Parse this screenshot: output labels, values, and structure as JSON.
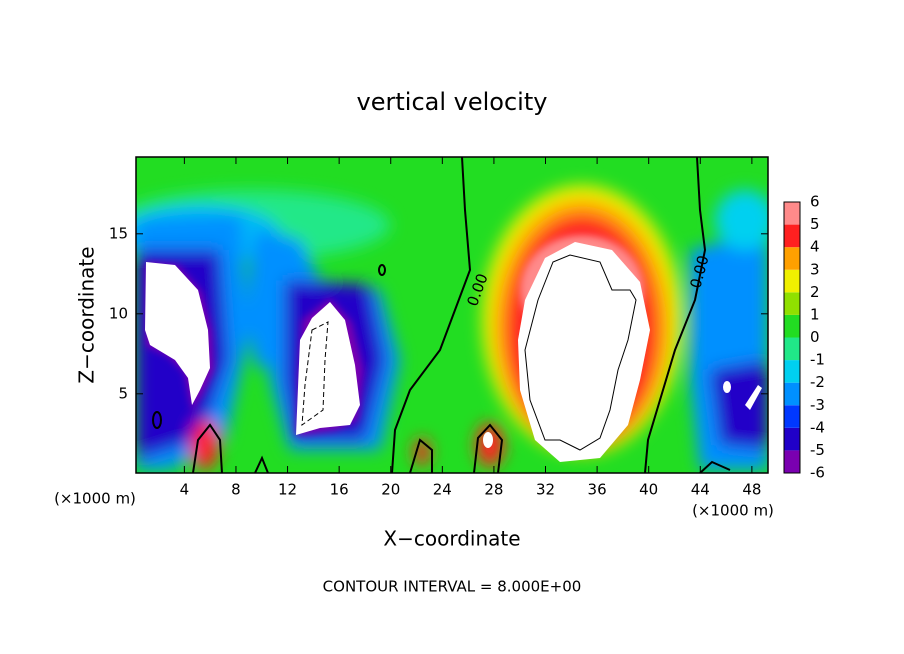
{
  "chart_data": {
    "type": "contour",
    "title": "vertical velocity",
    "x_label": "X−coordinate",
    "y_label": "Z−coordinate",
    "x_unit_labels": [
      "(×1000 m)",
      "(×1000 m)"
    ],
    "footer": "CONTOUR INTERVAL = 8.000E+00",
    "contour_labels": [
      "0.00",
      "0.00"
    ],
    "xlim": [
      0.25,
      49.25
    ],
    "xticks": [
      4,
      8,
      12,
      16,
      20,
      24,
      28,
      32,
      36,
      40,
      44,
      48
    ],
    "ylim": [
      0.05,
      19.8
    ],
    "yticks": [
      5,
      10,
      15
    ],
    "colorbar": {
      "levels": [
        -6,
        -5,
        -4,
        -3,
        -2,
        -1,
        0,
        1,
        2,
        3,
        4,
        5,
        6
      ],
      "colors": [
        "#7a00b0",
        "#2000c8",
        "#0038ff",
        "#0090ff",
        "#00d0f0",
        "#20e888",
        "#22dd22",
        "#90e000",
        "#f0f000",
        "#ffa000",
        "#ff2020",
        "#ff8a8a"
      ]
    }
  }
}
